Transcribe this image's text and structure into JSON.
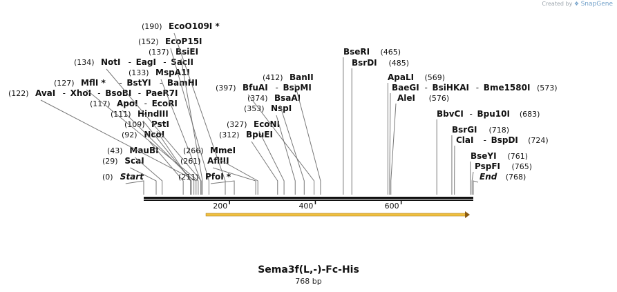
{
  "credit": {
    "prefix": "Created by",
    "brand": "SnapGene"
  },
  "sequence": {
    "name": "Sema3f(L,-)-Fc-His",
    "length_label": "768 bp",
    "length": 768
  },
  "feature": {
    "name": "ORF arrow",
    "start": 145,
    "end": 760,
    "color": "#f0c040"
  },
  "ticks": [
    {
      "pos": 200,
      "label": "200"
    },
    {
      "pos": 400,
      "label": "400"
    },
    {
      "pos": 600,
      "label": "600"
    }
  ],
  "sites": [
    {
      "group": [
        {
          "name": "Start",
          "italic": true
        }
      ],
      "pos": "(0)",
      "bp": 0
    },
    {
      "group": [
        {
          "name": "ScaI"
        }
      ],
      "pos": "(29)",
      "bp": 29
    },
    {
      "group": [
        {
          "name": "MauBI"
        }
      ],
      "pos": "(43)",
      "bp": 43
    },
    {
      "group": [
        {
          "name": "NcoI"
        }
      ],
      "pos": "(92)",
      "bp": 92
    },
    {
      "group": [
        {
          "name": "PstI"
        }
      ],
      "pos": "(109)",
      "bp": 109
    },
    {
      "group": [
        {
          "name": "HindIII"
        }
      ],
      "pos": "(111)",
      "bp": 111
    },
    {
      "group": [
        {
          "name": "ApoI"
        },
        {
          "name": "EcoRI"
        }
      ],
      "pos": "(117)",
      "bp": 117
    },
    {
      "group": [
        {
          "name": "AvaI"
        },
        {
          "name": "XhoI"
        },
        {
          "name": "BsoBI"
        },
        {
          "name": "PaeR7I"
        }
      ],
      "pos": "(122)",
      "bp": 122
    },
    {
      "group": [
        {
          "name": "MflI *"
        },
        {
          "name": "BstYI"
        },
        {
          "name": "BamHI"
        }
      ],
      "pos": "(127)",
      "bp": 127
    },
    {
      "group": [
        {
          "name": "MspA1I"
        }
      ],
      "pos": "(133)",
      "bp": 133
    },
    {
      "group": [
        {
          "name": "NotI"
        },
        {
          "name": "EagI"
        },
        {
          "name": "SacII"
        }
      ],
      "pos": "(134)",
      "bp": 134
    },
    {
      "group": [
        {
          "name": "BsiEI"
        }
      ],
      "pos": "(137)",
      "bp": 137
    },
    {
      "group": [
        {
          "name": "EcoP15I"
        }
      ],
      "pos": "(152)",
      "bp": 152
    },
    {
      "group": [
        {
          "name": "EcoO109I *"
        }
      ],
      "pos": "(190)",
      "bp": 190
    },
    {
      "group": [
        {
          "name": "PfoI *"
        }
      ],
      "pos": "(211)",
      "bp": 211
    },
    {
      "group": [
        {
          "name": "AflIII"
        }
      ],
      "pos": "(261)",
      "bp": 261
    },
    {
      "group": [
        {
          "name": "MmeI"
        }
      ],
      "pos": "(266)",
      "bp": 266
    },
    {
      "group": [
        {
          "name": "BpuEI"
        }
      ],
      "pos": "(312)",
      "bp": 312
    },
    {
      "group": [
        {
          "name": "EcoNI"
        }
      ],
      "pos": "(327)",
      "bp": 327
    },
    {
      "group": [
        {
          "name": "NspI"
        }
      ],
      "pos": "(353)",
      "bp": 353
    },
    {
      "group": [
        {
          "name": "BsaAI"
        }
      ],
      "pos": "(374)",
      "bp": 374
    },
    {
      "group": [
        {
          "name": "BfuAI"
        },
        {
          "name": "BspMI"
        }
      ],
      "pos": "(397)",
      "bp": 397
    },
    {
      "group": [
        {
          "name": "BanII"
        }
      ],
      "pos": "(412)",
      "bp": 412
    },
    {
      "group": [
        {
          "name": "BseRI"
        }
      ],
      "pos": "(465)",
      "bp": 465
    },
    {
      "group": [
        {
          "name": "BsrDI"
        }
      ],
      "pos": "(485)",
      "bp": 485
    },
    {
      "group": [
        {
          "name": "ApaLI"
        }
      ],
      "pos": "(569)",
      "bp": 569
    },
    {
      "group": [
        {
          "name": "BaeGI"
        },
        {
          "name": "BsiHKAI"
        },
        {
          "name": "Bme1580I"
        }
      ],
      "pos": "(573)",
      "bp": 573
    },
    {
      "group": [
        {
          "name": "AleI"
        }
      ],
      "pos": "(576)",
      "bp": 576
    },
    {
      "group": [
        {
          "name": "BbvCI"
        },
        {
          "name": "Bpu10I"
        }
      ],
      "pos": "(683)",
      "bp": 683
    },
    {
      "group": [
        {
          "name": "BsrGI"
        }
      ],
      "pos": "(718)",
      "bp": 718
    },
    {
      "group": [
        {
          "name": "ClaI"
        },
        {
          "name": "BspDI"
        }
      ],
      "pos": "(724)",
      "bp": 724
    },
    {
      "group": [
        {
          "name": "BseYI"
        }
      ],
      "pos": "(761)",
      "bp": 761
    },
    {
      "group": [
        {
          "name": "PspFI"
        }
      ],
      "pos": "(765)",
      "bp": 765
    },
    {
      "group": [
        {
          "name": "End",
          "italic": true
        }
      ],
      "pos": "(768)",
      "bp": 768
    }
  ]
}
